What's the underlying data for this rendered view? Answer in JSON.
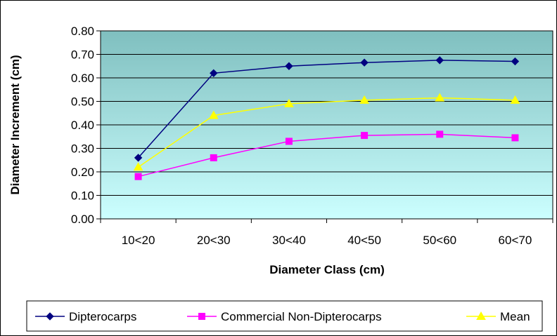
{
  "chart_data": {
    "type": "line",
    "title": "",
    "xlabel": "Diameter Class (cm)",
    "ylabel": "Diameter Increment (cm)",
    "categories": [
      "10<20",
      "20<30",
      "30<40",
      "40<50",
      "50<60",
      "60<70"
    ],
    "y_ticks": [
      "0.00",
      "0.10",
      "0.20",
      "0.30",
      "0.40",
      "0.50",
      "0.60",
      "0.70",
      "0.80"
    ],
    "ylim": [
      0,
      0.8
    ],
    "grid": true,
    "legend_position": "bottom",
    "series": [
      {
        "name": "Dipterocarps",
        "color": "#000080",
        "marker": "diamond",
        "values": [
          0.26,
          0.62,
          0.65,
          0.665,
          0.675,
          0.67
        ]
      },
      {
        "name": "Commercial Non-Dipterocarps",
        "color": "#ff00ff",
        "marker": "square",
        "values": [
          0.18,
          0.26,
          0.33,
          0.355,
          0.36,
          0.345
        ]
      },
      {
        "name": "Mean",
        "color": "#ffff00",
        "marker": "triangle",
        "values": [
          0.22,
          0.44,
          0.49,
          0.505,
          0.515,
          0.505
        ]
      }
    ],
    "plot_background": {
      "top_color": "#7fbfbf",
      "bottom_color": "#ccffff"
    }
  }
}
